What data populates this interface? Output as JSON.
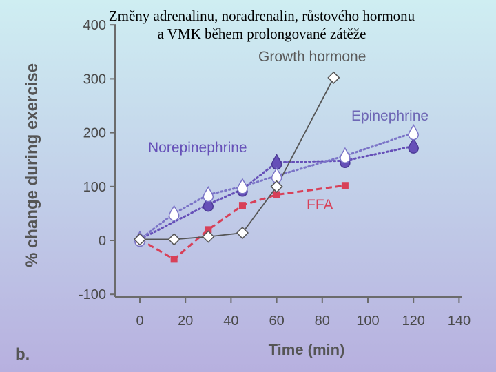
{
  "slide_title": {
    "line1": "Změny adrenalinu, noradrenalin, růstového hormonu",
    "line2": "a VMK během prolongované zátěže"
  },
  "chart_data": {
    "type": "line",
    "xlabel": "Time (min)",
    "ylabel": "% change during exercise",
    "panel_label": "b.",
    "xlim": [
      0,
      140
    ],
    "ylim": [
      -100,
      400
    ],
    "xticks": [
      0,
      20,
      40,
      60,
      80,
      100,
      120,
      140
    ],
    "yticks": [
      -100,
      0,
      100,
      200,
      300,
      400
    ],
    "grid": false,
    "series": [
      {
        "name": "Growth hormone",
        "color": "#555555",
        "marker": "open-diamond",
        "style": "solid",
        "x": [
          0,
          15,
          30,
          45,
          60,
          85
        ],
        "y": [
          2,
          2,
          7,
          14,
          100,
          302
        ]
      },
      {
        "name": "Epinephrine",
        "color": "#7b74c7",
        "marker": "white-drop",
        "style": "dotted",
        "x": [
          0,
          15,
          30,
          45,
          60,
          90,
          120
        ],
        "y": [
          2,
          50,
          85,
          100,
          120,
          157,
          200
        ]
      },
      {
        "name": "Norepinephrine",
        "color": "#6650b8",
        "marker": "purple-drop",
        "style": "dotted",
        "x": [
          0,
          30,
          45,
          60,
          90,
          120
        ],
        "y": [
          2,
          67,
          95,
          145,
          148,
          175
        ]
      },
      {
        "name": "FFA",
        "color": "#d84058",
        "marker": "square",
        "style": "dashed",
        "x": [
          0,
          15,
          30,
          45,
          60,
          90
        ],
        "y": [
          2,
          -35,
          20,
          65,
          85,
          102
        ]
      }
    ]
  }
}
